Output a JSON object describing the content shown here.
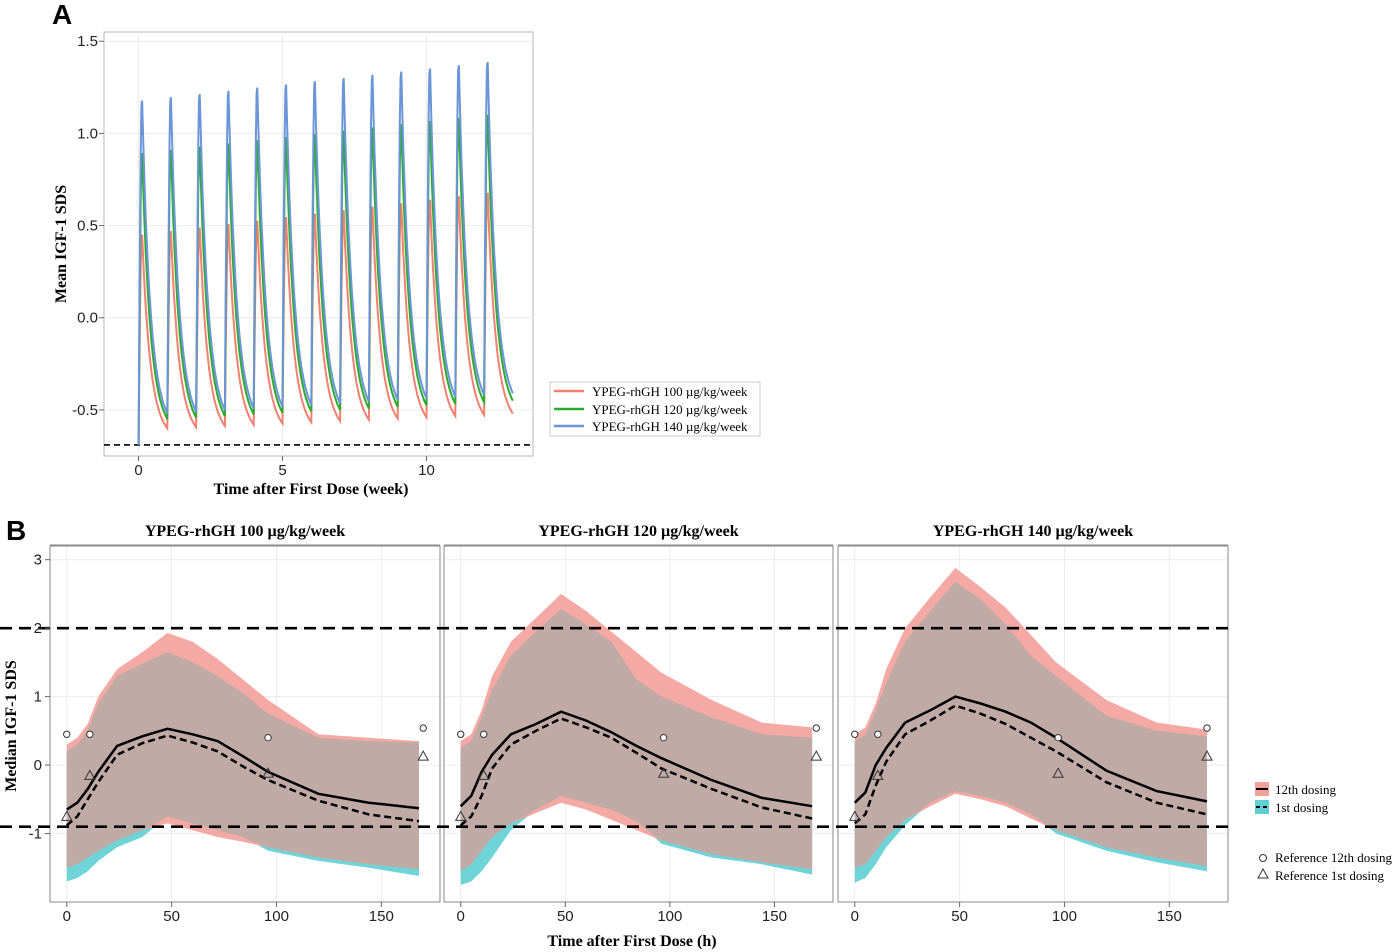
{
  "chart_data": [
    {
      "panel": "A",
      "type": "line",
      "xlabel": "Time after First Dose (week)",
      "ylabel": "Mean IGF-1 SDS",
      "xlim": [
        -1.2,
        13.7
      ],
      "ylim": [
        -0.75,
        1.55
      ],
      "x_ticks": [
        0,
        5,
        10
      ],
      "y_ticks": [
        -0.5,
        0.0,
        0.5,
        1.0,
        1.5
      ],
      "y_tick_labels": [
        "-0.5",
        "0.0",
        "0.5",
        "1.0",
        "1.5"
      ],
      "baseline": -0.69,
      "weeks": 13,
      "series": [
        {
          "name": "YPEG-rhGH 100 µg/kg/week",
          "color": "#f08070",
          "peak_start": 0.47,
          "peak_end": 0.7,
          "trough_start": -0.6,
          "trough_end": -0.52
        },
        {
          "name": "YPEG-rhGH 120 µg/kg/week",
          "color": "#2eab2e",
          "peak_start": 0.92,
          "peak_end": 1.13,
          "trough_start": -0.55,
          "trough_end": -0.45
        },
        {
          "name": "YPEG-rhGH 140 µg/kg/week",
          "color": "#6a95d8",
          "peak_start": 1.21,
          "peak_end": 1.42,
          "trough_start": -0.52,
          "trough_end": -0.41
        }
      ]
    },
    {
      "panel": "B",
      "type": "area",
      "xlabel": "Time after First Dose (h)",
      "ylabel": "Median IGF-1 SDS",
      "xlim": [
        -8,
        178
      ],
      "ylim": [
        -2.0,
        3.2
      ],
      "x_ticks": [
        0,
        50,
        100,
        150
      ],
      "y_ticks": [
        -1,
        0,
        1,
        2,
        3
      ],
      "hlines": [
        2,
        -0.9
      ],
      "legend": {
        "fill_12": "12th dosing",
        "fill_1": "1st dosing",
        "ref_12": "Reference 12th dosing",
        "ref_1": "Reference 1st dosing"
      },
      "colors": {
        "fill_12": "#f4a09a",
        "fill_1": "#5fcfd4",
        "overlap": "#bfaaa6"
      },
      "x": [
        0,
        5,
        10,
        15,
        24,
        36,
        48,
        60,
        72,
        84,
        96,
        120,
        144,
        168
      ],
      "facets": [
        {
          "title": "YPEG-rhGH 100 µg/kg/week",
          "median_12": [
            -0.65,
            -0.55,
            -0.35,
            -0.1,
            0.28,
            0.42,
            0.53,
            0.45,
            0.35,
            0.13,
            -0.1,
            -0.42,
            -0.55,
            -0.63
          ],
          "median_1": [
            -0.88,
            -0.75,
            -0.5,
            -0.25,
            0.15,
            0.32,
            0.43,
            0.33,
            0.2,
            -0.02,
            -0.22,
            -0.52,
            -0.72,
            -0.82
          ],
          "upper_12": [
            0.3,
            0.4,
            0.6,
            1.0,
            1.4,
            1.65,
            1.93,
            1.8,
            1.55,
            1.25,
            0.95,
            0.45,
            0.4,
            0.35
          ],
          "upper_1": [
            0.2,
            0.3,
            0.5,
            0.9,
            1.3,
            1.48,
            1.65,
            1.5,
            1.3,
            1.05,
            0.75,
            0.4,
            0.35,
            0.33
          ],
          "lower_12": [
            -1.5,
            -1.45,
            -1.35,
            -1.25,
            -1.1,
            -0.95,
            -0.85,
            -0.95,
            -1.05,
            -1.12,
            -1.2,
            -1.35,
            -1.45,
            -1.52
          ],
          "lower_1": [
            -1.7,
            -1.65,
            -1.55,
            -1.4,
            -1.2,
            -1.05,
            -0.75,
            -0.85,
            -0.95,
            -1.05,
            -1.25,
            -1.4,
            -1.5,
            -1.62
          ],
          "ref_12": {
            "x": [
              0,
              11,
              96,
              170
            ],
            "y": [
              0.45,
              0.45,
              0.4,
              0.54
            ]
          },
          "ref_1": {
            "x": [
              0,
              11,
              96,
              170
            ],
            "y": [
              -0.75,
              -0.15,
              -0.12,
              0.13
            ]
          }
        },
        {
          "title": "YPEG-rhGH 120 µg/kg/week",
          "median_12": [
            -0.6,
            -0.45,
            -0.1,
            0.15,
            0.45,
            0.6,
            0.78,
            0.65,
            0.48,
            0.28,
            0.1,
            -0.22,
            -0.48,
            -0.6
          ],
          "median_1": [
            -0.88,
            -0.75,
            -0.45,
            -0.05,
            0.3,
            0.5,
            0.68,
            0.55,
            0.4,
            0.18,
            -0.05,
            -0.35,
            -0.62,
            -0.78
          ],
          "upper_12": [
            0.35,
            0.45,
            0.8,
            1.3,
            1.8,
            2.15,
            2.5,
            2.25,
            1.95,
            1.65,
            1.35,
            0.95,
            0.62,
            0.55
          ],
          "upper_1": [
            0.25,
            0.35,
            0.7,
            1.1,
            1.6,
            1.95,
            2.28,
            2.05,
            1.8,
            1.25,
            1.0,
            0.7,
            0.45,
            0.4
          ],
          "lower_12": [
            -1.55,
            -1.45,
            -1.25,
            -1.05,
            -0.85,
            -0.7,
            -0.55,
            -0.65,
            -0.8,
            -0.95,
            -1.1,
            -1.3,
            -1.42,
            -1.52
          ],
          "lower_1": [
            -1.75,
            -1.7,
            -1.55,
            -1.35,
            -0.95,
            -0.65,
            -0.45,
            -0.55,
            -0.65,
            -0.82,
            -1.15,
            -1.35,
            -1.45,
            -1.6
          ],
          "ref_12": {
            "x": [
              0,
              11,
              97,
              170
            ],
            "y": [
              0.45,
              0.45,
              0.4,
              0.54
            ]
          },
          "ref_1": {
            "x": [
              0,
              11,
              97,
              170
            ],
            "y": [
              -0.75,
              -0.15,
              -0.12,
              0.13
            ]
          }
        },
        {
          "title": "YPEG-rhGH 140 µg/kg/week",
          "median_12": [
            -0.55,
            -0.4,
            0.0,
            0.25,
            0.62,
            0.8,
            1.0,
            0.9,
            0.78,
            0.62,
            0.4,
            -0.08,
            -0.38,
            -0.53
          ],
          "median_1": [
            -0.85,
            -0.72,
            -0.3,
            0.05,
            0.45,
            0.65,
            0.87,
            0.75,
            0.6,
            0.4,
            0.2,
            -0.25,
            -0.55,
            -0.72
          ],
          "upper_12": [
            0.45,
            0.55,
            0.9,
            1.4,
            2.0,
            2.45,
            2.88,
            2.6,
            2.3,
            1.9,
            1.5,
            0.95,
            0.62,
            0.52
          ],
          "upper_1": [
            0.35,
            0.45,
            0.8,
            1.2,
            1.8,
            2.25,
            2.68,
            2.42,
            2.05,
            1.6,
            1.3,
            0.72,
            0.5,
            0.42
          ],
          "lower_12": [
            -1.5,
            -1.45,
            -1.25,
            -1.05,
            -0.8,
            -0.6,
            -0.42,
            -0.5,
            -0.6,
            -0.78,
            -0.95,
            -1.2,
            -1.35,
            -1.48
          ],
          "lower_1": [
            -1.72,
            -1.65,
            -1.45,
            -1.2,
            -0.88,
            -0.55,
            -0.38,
            -0.45,
            -0.55,
            -0.72,
            -1.0,
            -1.25,
            -1.42,
            -1.55
          ],
          "ref_12": {
            "x": [
              0,
              11,
              97,
              168
            ],
            "y": [
              0.45,
              0.45,
              0.4,
              0.54
            ]
          },
          "ref_1": {
            "x": [
              0,
              11,
              97,
              168
            ],
            "y": [
              -0.75,
              -0.15,
              -0.12,
              0.13
            ]
          }
        }
      ]
    }
  ],
  "labels": {
    "panel_a": "A",
    "panel_b": "B"
  }
}
